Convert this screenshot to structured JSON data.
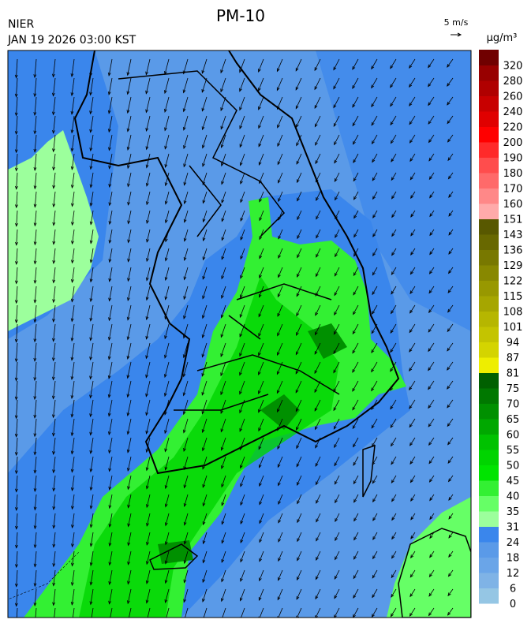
{
  "header": {
    "agency": "NIER",
    "title": "PM-10",
    "datetime": "JAN 19 2026 03:00 KST"
  },
  "wind_scale": {
    "label": "5 m/s"
  },
  "colorbar": {
    "unit": "μg/m³",
    "levels": [
      0,
      6,
      12,
      18,
      24,
      31,
      35,
      40,
      45,
      50,
      55,
      60,
      65,
      70,
      75,
      81,
      87,
      94,
      101,
      108,
      115,
      122,
      129,
      136,
      143,
      151,
      160,
      170,
      180,
      190,
      200,
      220,
      240,
      260,
      280,
      320
    ],
    "colors": [
      "#95c6e4",
      "#7fb3e6",
      "#6aa5e8",
      "#5a9ae8",
      "#3a86ec",
      "#9cff9c",
      "#66ff66",
      "#33f033",
      "#00e400",
      "#00d400",
      "#00c200",
      "#00a800",
      "#009000",
      "#007800",
      "#006000",
      "#eeee00",
      "#d4d400",
      "#c4c400",
      "#b6b600",
      "#a6a600",
      "#989800",
      "#888800",
      "#787800",
      "#686800",
      "#585800",
      "#ffaaaa",
      "#ff8888",
      "#ff6a6a",
      "#ff4d4d",
      "#ff2a2a",
      "#ff0000",
      "#e00000",
      "#c80000",
      "#b00000",
      "#980000",
      "#700000"
    ]
  }
}
